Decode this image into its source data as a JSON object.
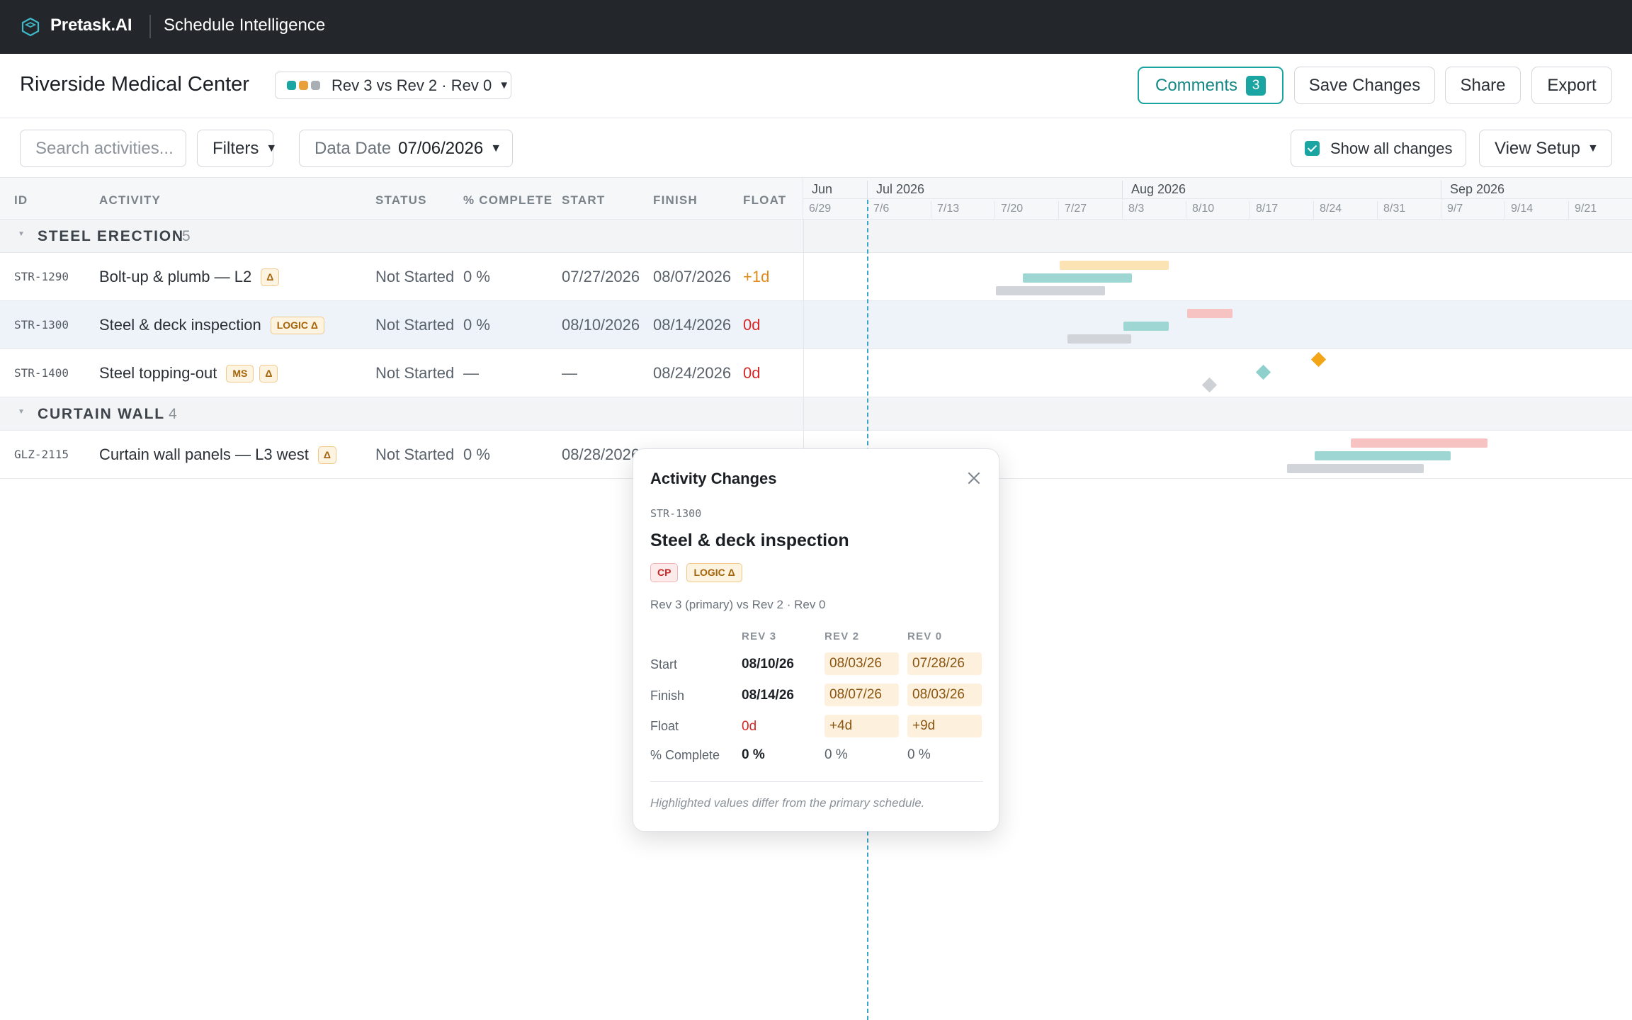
{
  "app": {
    "brand": "Pretask.AI",
    "product": "Schedule Intelligence",
    "accent": "#1aa5a3"
  },
  "project": {
    "title": "Riverside Medical Center",
    "revision_selector": {
      "label": "Rev 3 vs Rev 2 · Rev 0",
      "dot_colors": [
        "#1aa5a3",
        "#e8a13a",
        "#a9aeb4"
      ]
    }
  },
  "actions": {
    "comments_label": "Comments",
    "comments_count": "3",
    "save_label": "Save Changes",
    "share_label": "Share",
    "export_label": "Export"
  },
  "filters": {
    "search_placeholder": "Search activities...",
    "filters_label": "Filters",
    "data_date_label": "Data Date",
    "data_date_value": "07/06/2026",
    "show_all_changes_label": "Show all changes",
    "show_all_changes_checked": true,
    "view_setup_label": "View Setup"
  },
  "columns": {
    "id": "ID",
    "activity": "ACTIVITY",
    "status": "STATUS",
    "complete": "% COMPLETE",
    "start": "START",
    "finish": "FINISH",
    "float": "FLOAT"
  },
  "timeline": {
    "months": [
      "Jun",
      "Jul 2026",
      "Aug 2026",
      "Sep 2026"
    ],
    "weeks": [
      "6/29",
      "7/6",
      "7/13",
      "7/20",
      "7/27",
      "8/3",
      "8/10",
      "8/17",
      "8/24",
      "8/31",
      "9/7",
      "9/14",
      "9/21"
    ],
    "legend_colors": {
      "rev3": "#9dd6d3",
      "rev2": "#fbe3b3",
      "rev0": "#d1d4d8",
      "critical": "#f7c2c2"
    }
  },
  "groups": [
    {
      "name": "STEEL ERECTION",
      "count": "5",
      "activities": [
        {
          "id": "STR-1290",
          "name": "Bolt-up & plumb — L2",
          "chips": [
            "Δ"
          ],
          "status": "Not Started",
          "complete": "0 %",
          "start": "07/27/2026",
          "finish": "08/07/2026",
          "float": "+1d"
        },
        {
          "id": "STR-1300",
          "name": "Steel & deck inspection",
          "chips": [
            "LOGIC Δ"
          ],
          "status": "Not Started",
          "complete": "0 %",
          "start": "08/10/2026",
          "finish": "08/14/2026",
          "float": "0d"
        },
        {
          "id": "STR-1400",
          "name": "Steel topping-out",
          "chips": [
            "MS",
            "Δ"
          ],
          "status": "Not Started",
          "complete": "—",
          "start": "—",
          "finish": "08/24/2026",
          "float": "0d"
        }
      ]
    },
    {
      "name": "CURTAIN WALL",
      "count": "4",
      "activities": [
        {
          "id": "GLZ-2115",
          "name": "Curtain wall panels — L3 west",
          "chips": [
            "Δ"
          ],
          "status": "Not Started",
          "complete": "0 %",
          "start": "08/28/2026",
          "finish": "",
          "float": ""
        }
      ]
    }
  ],
  "popover": {
    "title": "Activity Changes",
    "activity_id": "STR-1300",
    "activity_name": "Steel & deck inspection",
    "chips": [
      "CP",
      "LOGIC Δ"
    ],
    "comparison": "Rev 3 (primary) vs Rev 2 · Rev 0",
    "headers": [
      "REV 3",
      "REV 2",
      "REV 0"
    ],
    "rows": [
      {
        "label": "Start",
        "rev3": "08/10/26",
        "rev2": "08/03/26",
        "rev0": "07/28/26"
      },
      {
        "label": "Finish",
        "rev3": "08/14/26",
        "rev2": "08/07/26",
        "rev0": "08/03/26"
      },
      {
        "label": "Float",
        "rev3": "0d",
        "rev2": "+4d",
        "rev0": "+9d"
      },
      {
        "label": "% Complete",
        "rev3": "0 %",
        "rev2": "0 %",
        "rev0": "0 %"
      }
    ],
    "note": "Highlighted values differ from the primary schedule."
  }
}
